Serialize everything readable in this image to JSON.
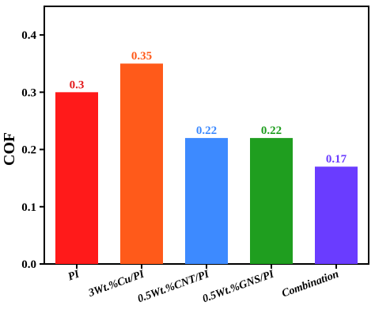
{
  "chart_data": {
    "type": "bar",
    "title": "",
    "xlabel": "",
    "ylabel": "COF",
    "ylim": [
      0,
      0.45
    ],
    "yticks": [
      "0.0",
      "0.1",
      "0.2",
      "0.3",
      "0.4"
    ],
    "ytick_values": [
      0,
      0.1,
      0.2,
      0.3,
      0.4
    ],
    "grid": false,
    "categories": [
      "PI",
      "3Wt.%Cu/PI",
      "0.5Wt.%CNT/PI",
      "0.5Wt.%GNS/PI",
      "Combination"
    ],
    "values": [
      0.3,
      0.35,
      0.22,
      0.22,
      0.17
    ],
    "value_labels": [
      "0.3",
      "0.35",
      "0.22",
      "0.22",
      "0.17"
    ],
    "colors": [
      "#ff1a1a",
      "#ff5a1a",
      "#3d8aff",
      "#1f9e1f",
      "#6a3cff"
    ],
    "label_colors": [
      "#e31a1c",
      "#ff5a1a",
      "#3d8aff",
      "#1f9e1f",
      "#6a3cff"
    ]
  }
}
